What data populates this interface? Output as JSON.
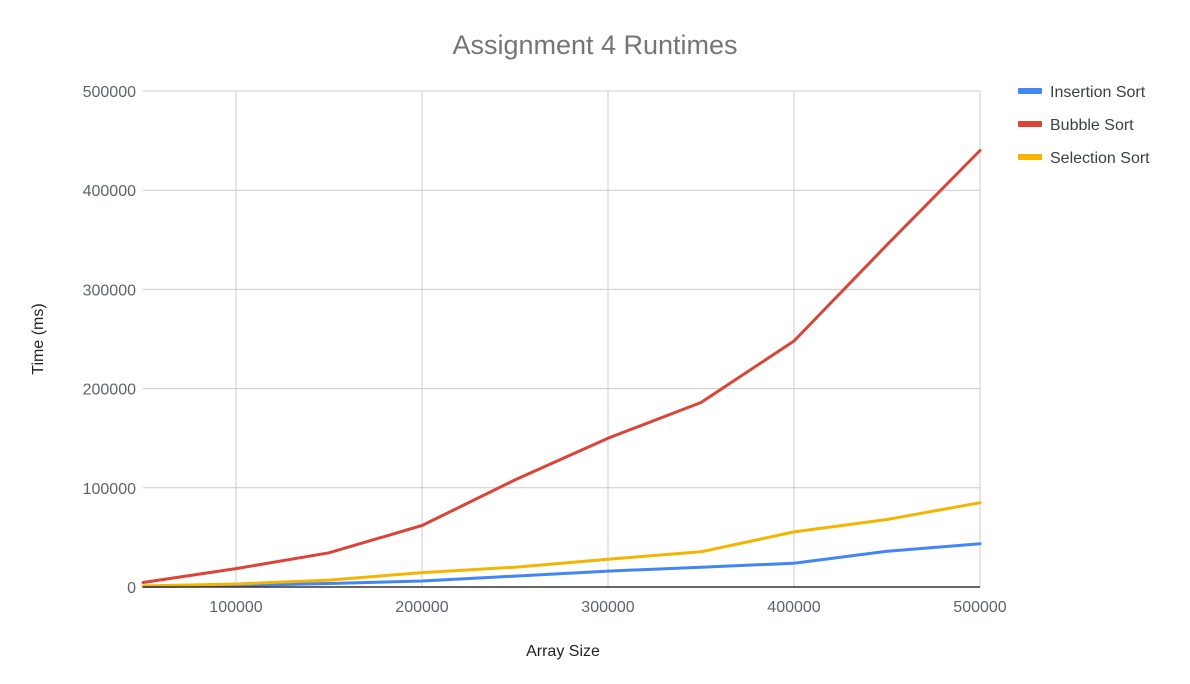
{
  "chart_data": {
    "type": "line",
    "title": "Assignment 4 Runtimes",
    "xlabel": "Array Size",
    "ylabel": "Time (ms)",
    "x": [
      50000,
      100000,
      150000,
      200000,
      250000,
      300000,
      350000,
      400000,
      450000,
      500000
    ],
    "xlim": [
      50000,
      500000
    ],
    "ylim": [
      0,
      500000
    ],
    "x_ticks": [
      100000,
      200000,
      300000,
      400000,
      500000
    ],
    "y_ticks": [
      0,
      100000,
      200000,
      300000,
      400000,
      500000
    ],
    "x_tick_labels": [
      "100000",
      "200000",
      "300000",
      "400000",
      "500000"
    ],
    "y_tick_labels": [
      "0",
      "100000",
      "200000",
      "300000",
      "400000",
      "500000"
    ],
    "grid": true,
    "legend_position": "right",
    "series": [
      {
        "name": "Insertion Sort",
        "color": "#4285f4",
        "values": [
          500,
          1500,
          3500,
          6000,
          11000,
          16000,
          20000,
          24000,
          36000,
          43500
        ]
      },
      {
        "name": "Bubble Sort",
        "color": "#db4437",
        "values": [
          4500,
          18500,
          34500,
          62000,
          108000,
          150000,
          186000,
          248000,
          345000,
          440000
        ]
      },
      {
        "name": "Selection Sort",
        "color": "#f4b400",
        "values": [
          1000,
          3000,
          7000,
          14500,
          20000,
          28000,
          35500,
          55500,
          68000,
          85000
        ]
      }
    ]
  }
}
